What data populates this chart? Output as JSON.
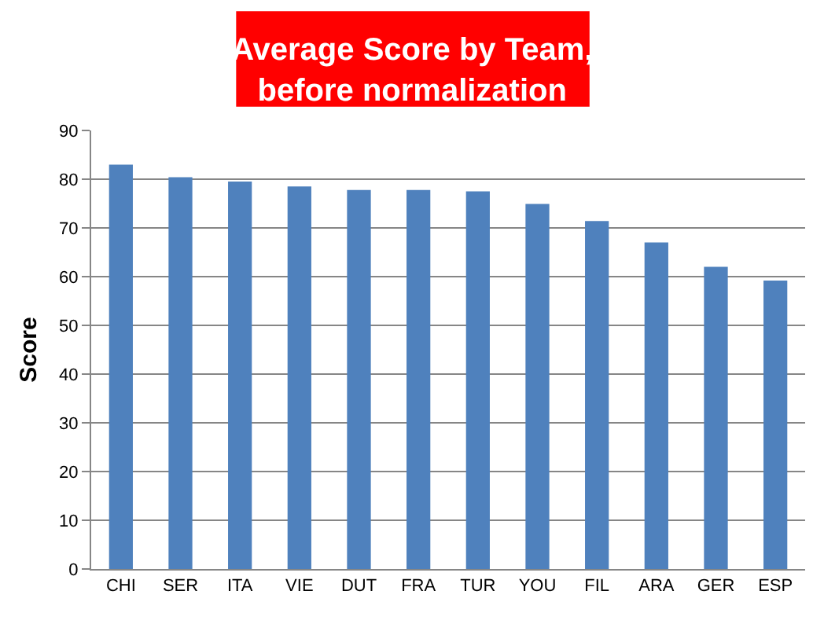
{
  "chart_data": {
    "type": "bar",
    "title": "Average Score by Team,\nbefore normalization",
    "ylabel": "Score",
    "categories": [
      "CHI",
      "SER",
      "ITA",
      "VIE",
      "DUT",
      "FRA",
      "TUR",
      "YOU",
      "FIL",
      "ARA",
      "GER",
      "ESP"
    ],
    "values": [
      83.0,
      80.4,
      79.5,
      78.5,
      77.8,
      77.8,
      77.5,
      74.9,
      71.4,
      67.0,
      62.0,
      59.2
    ],
    "color": "#4f81bd",
    "ylim": [
      0,
      90
    ],
    "yticks": [
      0,
      10,
      20,
      30,
      40,
      50,
      60,
      70,
      80,
      90
    ],
    "grid": "y",
    "legend": false
  }
}
